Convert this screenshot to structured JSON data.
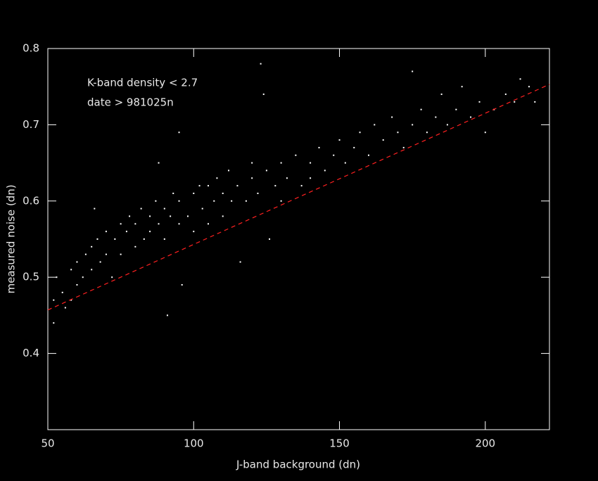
{
  "chart_data": {
    "type": "scatter",
    "x_label": "J-band background (dn)",
    "y_label": "measured noise (dn)",
    "annotations": [
      "K-band density < 2.7",
      "date > 981025n"
    ],
    "xlim": [
      50,
      222
    ],
    "ylim": [
      0.3,
      0.8
    ],
    "xticks": [
      50,
      100,
      150,
      200
    ],
    "yticks": [
      0.4,
      0.5,
      0.6,
      0.7,
      0.8
    ],
    "color": "#ffffff",
    "x": [
      52,
      52,
      53,
      55,
      56,
      58,
      58,
      60,
      60,
      62,
      63,
      65,
      65,
      67,
      68,
      70,
      70,
      72,
      73,
      75,
      75,
      77,
      78,
      80,
      80,
      82,
      83,
      85,
      85,
      87,
      88,
      90,
      90,
      91,
      92,
      93,
      95,
      95,
      96,
      98,
      100,
      100,
      102,
      103,
      105,
      105,
      107,
      108,
      110,
      110,
      112,
      113,
      115,
      116,
      118,
      120,
      120,
      122,
      125,
      126,
      128,
      130,
      130,
      132,
      135,
      137,
      140,
      140,
      143,
      145,
      148,
      150,
      152,
      155,
      157,
      160,
      162,
      165,
      168,
      170,
      172,
      175,
      178,
      180,
      183,
      185,
      187,
      190,
      192,
      195,
      198,
      200,
      203,
      207,
      210,
      212,
      215,
      217,
      66,
      95,
      123,
      124,
      88,
      175
    ],
    "values": [
      0.47,
      0.44,
      0.5,
      0.48,
      0.46,
      0.51,
      0.47,
      0.52,
      0.49,
      0.5,
      0.53,
      0.51,
      0.54,
      0.55,
      0.52,
      0.53,
      0.56,
      0.5,
      0.55,
      0.57,
      0.53,
      0.56,
      0.58,
      0.54,
      0.57,
      0.59,
      0.55,
      0.58,
      0.56,
      0.6,
      0.57,
      0.59,
      0.55,
      0.45,
      0.58,
      0.61,
      0.57,
      0.6,
      0.49,
      0.58,
      0.61,
      0.56,
      0.62,
      0.59,
      0.57,
      0.62,
      0.6,
      0.63,
      0.58,
      0.61,
      0.64,
      0.6,
      0.62,
      0.52,
      0.6,
      0.63,
      0.65,
      0.61,
      0.64,
      0.55,
      0.62,
      0.65,
      0.6,
      0.63,
      0.66,
      0.62,
      0.65,
      0.63,
      0.67,
      0.64,
      0.66,
      0.68,
      0.65,
      0.67,
      0.69,
      0.66,
      0.7,
      0.68,
      0.71,
      0.69,
      0.67,
      0.7,
      0.72,
      0.69,
      0.71,
      0.74,
      0.7,
      0.72,
      0.75,
      0.71,
      0.73,
      0.69,
      0.72,
      0.74,
      0.73,
      0.76,
      0.75,
      0.73,
      0.59,
      0.69,
      0.78,
      0.74,
      0.65,
      0.77
    ],
    "fit": {
      "x": [
        50,
        222
      ],
      "values": [
        0.457,
        0.753
      ],
      "color": "#ff2020"
    }
  }
}
